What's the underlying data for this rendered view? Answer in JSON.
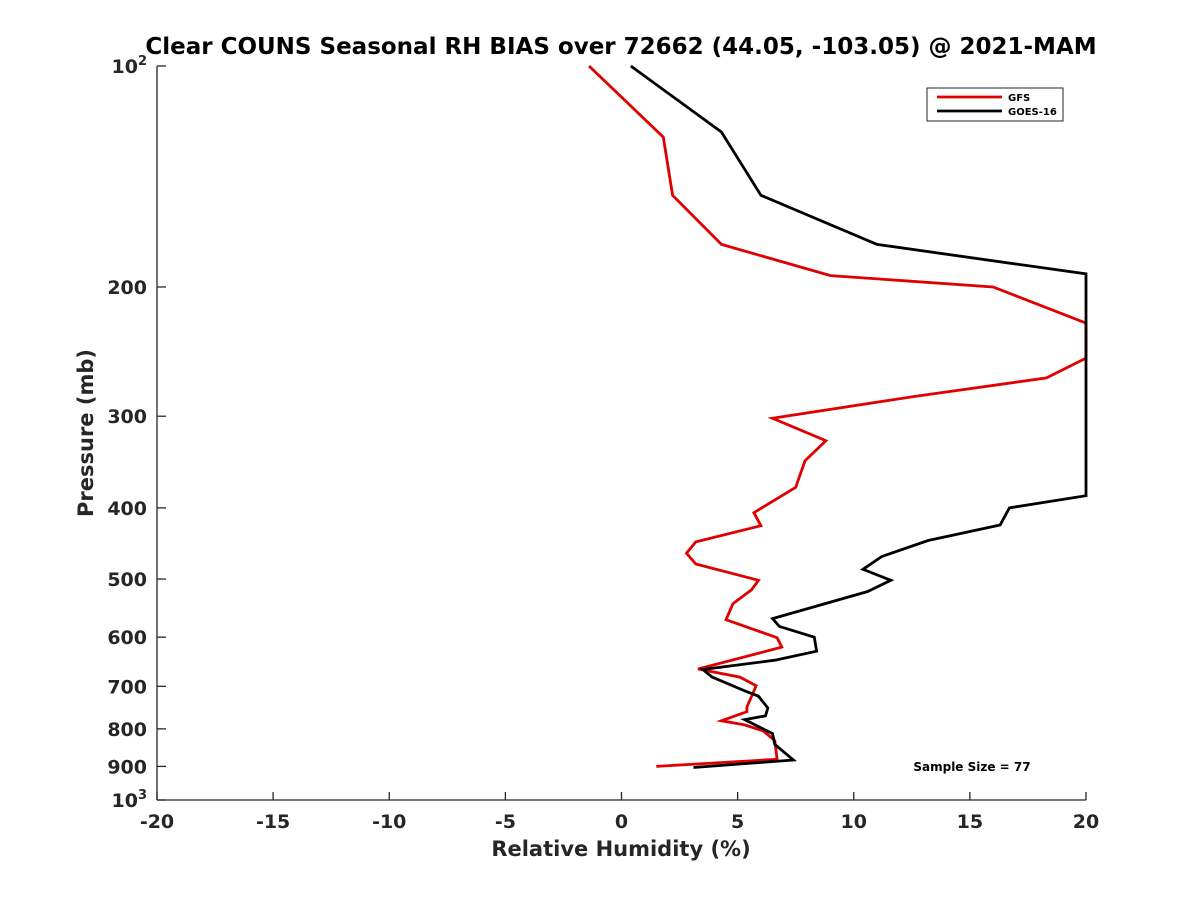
{
  "chart_data": {
    "type": "line",
    "title": "Clear COUNS Seasonal RH BIAS over 72662 (44.05, -103.05) @ 2021-MAM",
    "xlabel": "Relative Humidity (%)",
    "ylabel": "Pressure (mb)",
    "xlim": [
      -20,
      20
    ],
    "ylim": [
      100,
      1000
    ],
    "y_scale": "log",
    "y_reversed": true,
    "grid": false,
    "legend_position": "top-right",
    "x_ticks": [
      -20,
      -15,
      -10,
      -5,
      0,
      5,
      10,
      15,
      20
    ],
    "y_ticks": [
      {
        "value": 100,
        "base": "10",
        "exp": "2"
      },
      {
        "value": 200,
        "label": "200"
      },
      {
        "value": 300,
        "label": "300"
      },
      {
        "value": 400,
        "label": "400"
      },
      {
        "value": 500,
        "label": "500"
      },
      {
        "value": 600,
        "label": "600"
      },
      {
        "value": 700,
        "label": "700"
      },
      {
        "value": 800,
        "label": "800"
      },
      {
        "value": 900,
        "label": "900"
      },
      {
        "value": 1000,
        "base": "10",
        "exp": "3"
      }
    ],
    "annotation": "Sample Size = 77",
    "series": [
      {
        "name": "GFS",
        "color": "#e00000",
        "points": [
          [
            -1.4,
            100
          ],
          [
            1.8,
            125
          ],
          [
            2.2,
            150
          ],
          [
            4.3,
            175
          ],
          [
            9.0,
            193
          ],
          [
            16.0,
            200
          ],
          [
            20.0,
            224
          ],
          [
            20.0,
            250
          ],
          [
            18.3,
            266
          ],
          [
            12.6,
            282
          ],
          [
            6.5,
            302
          ],
          [
            8.8,
            324
          ],
          [
            7.9,
            345
          ],
          [
            7.5,
            375
          ],
          [
            5.7,
            406
          ],
          [
            6.0,
            423
          ],
          [
            3.2,
            445
          ],
          [
            2.8,
            461
          ],
          [
            3.2,
            477
          ],
          [
            5.9,
            502
          ],
          [
            5.6,
            517
          ],
          [
            4.8,
            540
          ],
          [
            4.5,
            568
          ],
          [
            6.7,
            601
          ],
          [
            6.9,
            619
          ],
          [
            3.3,
            663
          ],
          [
            5.1,
            680
          ],
          [
            5.8,
            699
          ],
          [
            5.4,
            747
          ],
          [
            5.4,
            758
          ],
          [
            4.3,
            780
          ],
          [
            5.3,
            790
          ],
          [
            6.1,
            805
          ],
          [
            6.6,
            830
          ],
          [
            6.7,
            880
          ],
          [
            1.5,
            900
          ]
        ]
      },
      {
        "name": "GOES-16",
        "color": "#000000",
        "points": [
          [
            0.4,
            100
          ],
          [
            4.3,
            123
          ],
          [
            6.0,
            150
          ],
          [
            11.0,
            175
          ],
          [
            20.0,
            192
          ],
          [
            20.0,
            385
          ],
          [
            16.7,
            400
          ],
          [
            16.3,
            422
          ],
          [
            13.2,
            443
          ],
          [
            11.2,
            466
          ],
          [
            10.4,
            485
          ],
          [
            11.6,
            502
          ],
          [
            10.6,
            520
          ],
          [
            6.5,
            566
          ],
          [
            6.8,
            580
          ],
          [
            8.3,
            600
          ],
          [
            8.4,
            627
          ],
          [
            6.6,
            645
          ],
          [
            3.5,
            664
          ],
          [
            3.9,
            680
          ],
          [
            5.3,
            710
          ],
          [
            5.9,
            722
          ],
          [
            6.3,
            749
          ],
          [
            6.2,
            768
          ],
          [
            5.3,
            777
          ],
          [
            6.5,
            812
          ],
          [
            6.6,
            840
          ],
          [
            7.4,
            882
          ],
          [
            3.1,
            903
          ]
        ]
      }
    ]
  }
}
